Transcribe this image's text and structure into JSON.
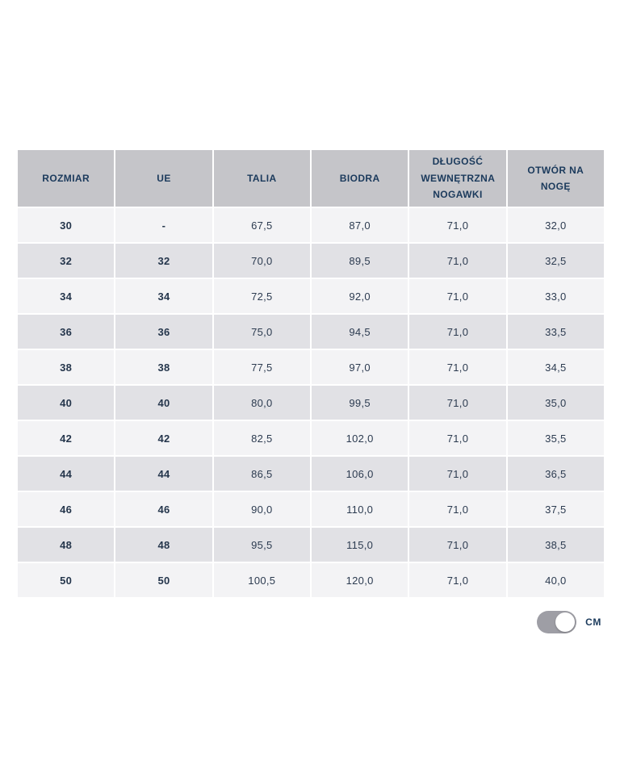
{
  "table": {
    "columns": [
      "ROZMIAR",
      "UE",
      "TALIA",
      "BIODRA",
      "DŁUGOŚĆ WEWNĘTRZNA NOGAWKI",
      "OTWÓR NA NOGĘ"
    ],
    "rows": [
      [
        "30",
        "-",
        "67,5",
        "87,0",
        "71,0",
        "32,0"
      ],
      [
        "32",
        "32",
        "70,0",
        "89,5",
        "71,0",
        "32,5"
      ],
      [
        "34",
        "34",
        "72,5",
        "92,0",
        "71,0",
        "33,0"
      ],
      [
        "36",
        "36",
        "75,0",
        "94,5",
        "71,0",
        "33,5"
      ],
      [
        "38",
        "38",
        "77,5",
        "97,0",
        "71,0",
        "34,5"
      ],
      [
        "40",
        "40",
        "80,0",
        "99,5",
        "71,0",
        "35,0"
      ],
      [
        "42",
        "42",
        "82,5",
        "102,0",
        "71,0",
        "35,5"
      ],
      [
        "44",
        "44",
        "86,5",
        "106,0",
        "71,0",
        "36,5"
      ],
      [
        "46",
        "46",
        "90,0",
        "110,0",
        "71,0",
        "37,5"
      ],
      [
        "48",
        "48",
        "95,5",
        "115,0",
        "71,0",
        "38,5"
      ],
      [
        "50",
        "50",
        "100,5",
        "120,0",
        "71,0",
        "40,0"
      ]
    ]
  },
  "unit_toggle": {
    "label": "CM",
    "state": "on"
  },
  "colors": {
    "header_bg": "#c5c5c9",
    "row_light": "#f3f3f5",
    "row_dark": "#e1e1e5",
    "header_text": "#1b3a5c",
    "cell_text": "#2c3b50",
    "toggle_track": "#9e9ea5",
    "toggle_knob": "#ffffff"
  }
}
